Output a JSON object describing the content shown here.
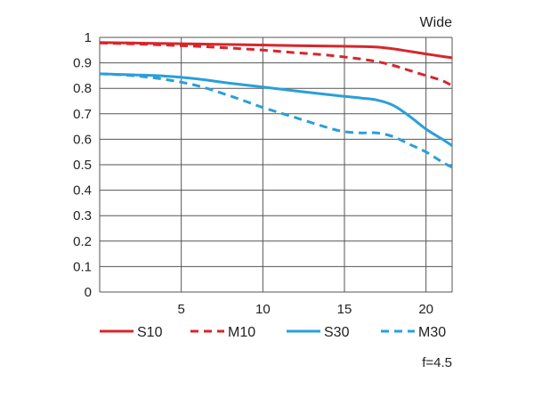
{
  "chart_data": {
    "type": "line",
    "title": "Wide",
    "footnote": "f=4.5",
    "xlabel": "",
    "ylabel": "",
    "xlim": [
      0,
      21.6
    ],
    "ylim": [
      0,
      1
    ],
    "x_ticks": [
      5,
      10,
      15,
      20
    ],
    "y_ticks": [
      0,
      0.1,
      0.2,
      0.3,
      0.4,
      0.5,
      0.6,
      0.7,
      0.8,
      0.9,
      1
    ],
    "y_tick_labels": [
      "0",
      "0.1",
      "0.2",
      "0.3",
      "0.4",
      "0.5",
      "0.6",
      "0.7",
      "0.8",
      "0.9",
      "1"
    ],
    "x_grid": [
      0,
      5,
      10,
      15,
      20,
      21.6
    ],
    "grid": true,
    "legend_position": "bottom",
    "series": [
      {
        "name": "S10",
        "color": "#d7262b",
        "dash": "solid",
        "x": [
          0,
          2,
          4,
          6,
          8,
          10,
          12,
          14,
          16,
          17,
          18,
          19,
          20,
          21,
          21.6
        ],
        "y": [
          0.98,
          0.978,
          0.976,
          0.974,
          0.972,
          0.97,
          0.968,
          0.966,
          0.964,
          0.962,
          0.955,
          0.945,
          0.935,
          0.925,
          0.92
        ]
      },
      {
        "name": "M10",
        "color": "#d7262b",
        "dash": "dashed",
        "x": [
          0,
          2,
          4,
          6,
          8,
          10,
          12,
          14,
          16,
          17,
          18,
          19,
          20,
          21,
          21.6
        ],
        "y": [
          0.978,
          0.975,
          0.97,
          0.965,
          0.958,
          0.95,
          0.94,
          0.93,
          0.915,
          0.905,
          0.89,
          0.87,
          0.85,
          0.83,
          0.81
        ]
      },
      {
        "name": "S30",
        "color": "#2a9fd8",
        "dash": "solid",
        "x": [
          0,
          2,
          4,
          6,
          8,
          10,
          12,
          14,
          16,
          17,
          18,
          19,
          20,
          21,
          21.6
        ],
        "y": [
          0.857,
          0.853,
          0.848,
          0.837,
          0.82,
          0.805,
          0.79,
          0.775,
          0.762,
          0.754,
          0.733,
          0.69,
          0.64,
          0.6,
          0.575
        ]
      },
      {
        "name": "M30",
        "color": "#2a9fd8",
        "dash": "dashed",
        "x": [
          0,
          2,
          4,
          6,
          8,
          10,
          12,
          14,
          15,
          16,
          17,
          18,
          19,
          20,
          21,
          21.6
        ],
        "y": [
          0.857,
          0.85,
          0.835,
          0.81,
          0.77,
          0.725,
          0.685,
          0.645,
          0.63,
          0.625,
          0.625,
          0.61,
          0.58,
          0.55,
          0.51,
          0.49
        ]
      }
    ]
  }
}
